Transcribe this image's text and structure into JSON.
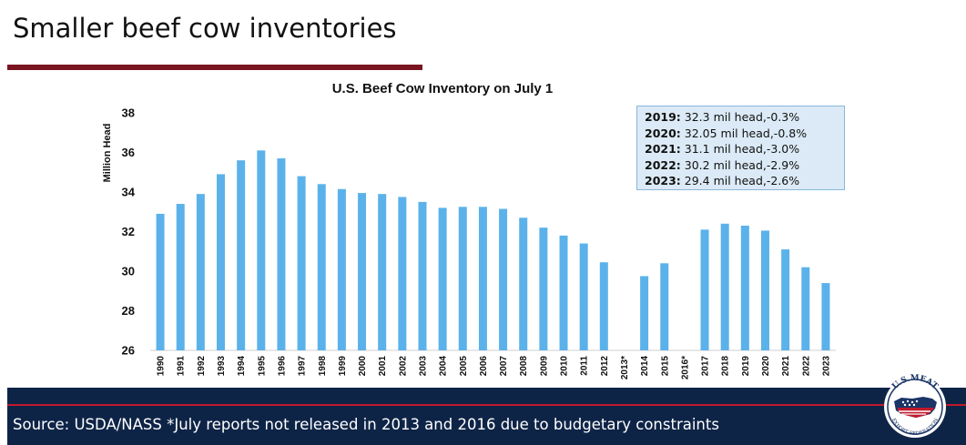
{
  "slide": {
    "title": "Smaller beef cow inventories",
    "source": "Source: USDA/NASS *July reports not released in 2013 and 2016 due to budgetary constraints",
    "accent_color": "#7a1420",
    "footer_color": "#0e2447"
  },
  "stats_box": [
    {
      "year": "2019:",
      "text": "32.3 mil head,-0.3%"
    },
    {
      "year": "2020:",
      "text": "32.05 mil head,-0.8%"
    },
    {
      "year": "2021:",
      "text": "31.1 mil head,-3.0%"
    },
    {
      "year": "2022:",
      "text": "30.2 mil head,-2.9%"
    },
    {
      "year": "2023:",
      "text": "29.4 mil head,-2.6%"
    }
  ],
  "logo": {
    "text": "U.S.MEAT EXPORT FEDERATION",
    "icon": "usa-map-flag-icon"
  },
  "chart_data": {
    "type": "bar",
    "title": "U.S. Beef Cow Inventory on July 1",
    "xlabel": "",
    "ylabel": "Million Head",
    "ylim": [
      26,
      38
    ],
    "yticks": [
      26,
      28,
      30,
      32,
      34,
      36,
      38
    ],
    "grid": false,
    "legend": "none",
    "bar_color": "#5bb2ea",
    "categories": [
      "1990",
      "1991",
      "1992",
      "1993",
      "1994",
      "1995",
      "1996",
      "1997",
      "1998",
      "1999",
      "2000",
      "2001",
      "2002",
      "2003",
      "2004",
      "2005",
      "2006",
      "2007",
      "2008",
      "2009",
      "2010",
      "2011",
      "2012",
      "2013*",
      "2014",
      "2015",
      "2016*",
      "2017",
      "2018",
      "2019",
      "2020",
      "2021",
      "2022",
      "2023"
    ],
    "values": [
      32.9,
      33.4,
      33.9,
      34.9,
      35.6,
      36.1,
      35.7,
      34.8,
      34.4,
      34.15,
      33.95,
      33.9,
      33.75,
      33.5,
      33.2,
      33.25,
      33.25,
      33.15,
      32.7,
      32.2,
      31.8,
      31.4,
      30.45,
      null,
      29.75,
      30.4,
      null,
      32.1,
      32.4,
      32.3,
      32.05,
      31.1,
      30.2,
      29.4
    ]
  }
}
